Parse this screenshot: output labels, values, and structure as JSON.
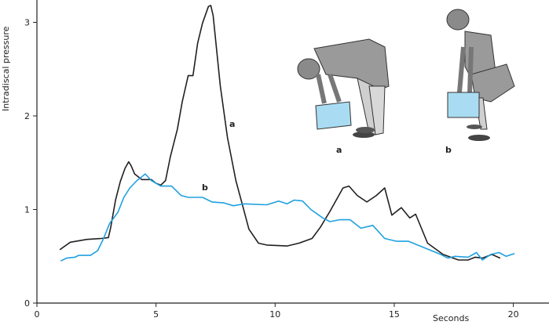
{
  "chart_data": {
    "type": "line",
    "title": "",
    "xlabel": "Seconds",
    "ylabel": "Intradiscal pressure",
    "xlim": [
      0,
      22
    ],
    "ylim": [
      0,
      3.2
    ],
    "xticks": [
      0,
      5,
      10,
      15,
      20
    ],
    "yticks": [
      0,
      1,
      2,
      3
    ],
    "grid": false,
    "colors": {
      "a": "#231f20",
      "b": "#1ea0e0"
    },
    "series": [
      {
        "name": "a",
        "x": [
          0.96,
          1.4,
          2.1,
          2.7,
          3.0,
          3.1,
          3.3,
          3.5,
          3.7,
          3.85,
          3.95,
          4.1,
          4.4,
          4.8,
          5.0,
          5.2,
          5.4,
          5.6,
          5.9,
          6.1,
          6.35,
          6.55,
          6.75,
          6.95,
          7.2,
          7.3,
          7.4,
          7.7,
          8.0,
          8.35,
          8.7,
          8.9,
          9.3,
          9.65,
          10.5,
          11.0,
          11.55,
          11.9,
          12.3,
          12.85,
          13.1,
          13.45,
          13.85,
          14.25,
          14.6,
          14.9,
          15.3,
          15.65,
          15.9,
          16.4,
          17.05,
          17.7,
          18.1,
          18.4,
          18.7,
          19.1,
          19.45
        ],
        "y": [
          0.57,
          0.65,
          0.68,
          0.69,
          0.7,
          0.81,
          1.1,
          1.3,
          1.44,
          1.51,
          1.47,
          1.38,
          1.32,
          1.32,
          1.28,
          1.26,
          1.31,
          1.56,
          1.86,
          2.15,
          2.43,
          2.43,
          2.78,
          2.99,
          3.17,
          3.18,
          3.07,
          2.32,
          1.77,
          1.31,
          0.98,
          0.79,
          0.64,
          0.62,
          0.61,
          0.64,
          0.69,
          0.81,
          0.98,
          1.23,
          1.25,
          1.15,
          1.08,
          1.15,
          1.23,
          0.94,
          1.02,
          0.91,
          0.95,
          0.64,
          0.52,
          0.46,
          0.46,
          0.49,
          0.48,
          0.52,
          0.48
        ]
      },
      {
        "name": "b",
        "x": [
          1.0,
          1.25,
          1.6,
          1.75,
          2.25,
          2.55,
          2.8,
          3.05,
          3.4,
          3.65,
          3.9,
          4.2,
          4.55,
          4.8,
          5.2,
          5.65,
          6.05,
          6.35,
          6.95,
          7.35,
          7.85,
          8.25,
          8.7,
          9.65,
          10.15,
          10.5,
          10.8,
          11.15,
          11.5,
          12.0,
          12.3,
          12.7,
          13.15,
          13.6,
          14.1,
          14.6,
          15.1,
          15.6,
          16.95,
          17.25,
          17.55,
          18.1,
          18.45,
          18.7,
          19.05,
          19.4,
          19.7,
          20.05
        ],
        "y": [
          0.45,
          0.48,
          0.49,
          0.51,
          0.51,
          0.56,
          0.69,
          0.85,
          0.97,
          1.13,
          1.23,
          1.31,
          1.38,
          1.31,
          1.25,
          1.25,
          1.15,
          1.13,
          1.13,
          1.08,
          1.07,
          1.04,
          1.06,
          1.05,
          1.09,
          1.06,
          1.1,
          1.09,
          1.0,
          0.91,
          0.87,
          0.89,
          0.89,
          0.8,
          0.83,
          0.69,
          0.66,
          0.66,
          0.52,
          0.48,
          0.5,
          0.49,
          0.54,
          0.46,
          0.52,
          0.54,
          0.5,
          0.53
        ]
      }
    ],
    "annotations": {
      "curve_a": "a",
      "curve_b": "b",
      "figure_a": "a",
      "figure_b": "b"
    }
  }
}
